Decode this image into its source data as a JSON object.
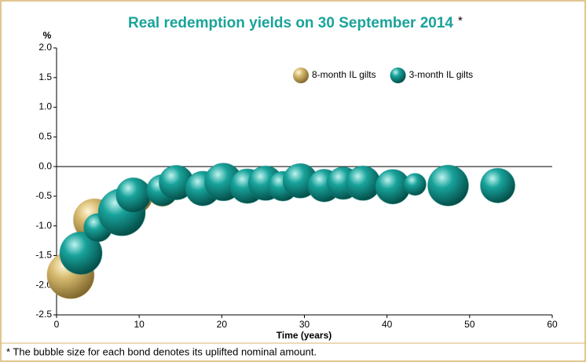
{
  "chart_data": {
    "type": "bubble",
    "title": "Real redemption yields on 30 September 2014",
    "title_mark": "*",
    "y_label": "%",
    "x_label": "Time (years)",
    "footnote": "* The bubble size for each bond denotes its uplifted nominal amount.",
    "xlim": [
      0,
      60
    ],
    "xticks": [
      0,
      10,
      20,
      30,
      40,
      50,
      60
    ],
    "ylim": [
      -2.5,
      2.0
    ],
    "yticks": [
      {
        "value": 2.0,
        "label": "2.0"
      },
      {
        "value": 1.5,
        "label": "1.5"
      },
      {
        "value": 1.0,
        "label": "1.0"
      },
      {
        "value": 0.5,
        "label": "0.5"
      },
      {
        "value": 0,
        "label": "0.0"
      },
      {
        "value": -0.5,
        "label": "-0.5"
      },
      {
        "value": -1.0,
        "label": "-1.0"
      },
      {
        "value": -1.5,
        "label": "-1.5"
      },
      {
        "value": -2.0,
        "label": "-2.0"
      },
      {
        "value": -2.5,
        "label": "-2.5"
      }
    ],
    "legend": "top-right",
    "series": [
      {
        "name": "8-month IL gilts",
        "color": "#c9a85a",
        "x": [
          1.7,
          4.6,
          9.5,
          12.8,
          17.7
        ],
        "values": [
          -1.83,
          -0.9,
          -0.5,
          -0.42,
          -0.38
        ],
        "sizes": [
          100,
          81,
          54,
          40,
          45
        ]
      },
      {
        "name": "3-month IL gilts",
        "color": "#0f8a84",
        "x": [
          2.95,
          5.0,
          7.9,
          9.3,
          12.8,
          14.5,
          17.7,
          20.2,
          23.1,
          25.3,
          27.4,
          29.5,
          32.4,
          34.7,
          37.1,
          40.7,
          43.4,
          47.4,
          53.4
        ],
        "values": [
          -1.46,
          -1.03,
          -0.77,
          -0.48,
          -0.4,
          -0.27,
          -0.37,
          -0.26,
          -0.33,
          -0.28,
          -0.33,
          -0.24,
          -0.32,
          -0.28,
          -0.28,
          -0.34,
          -0.3,
          -0.32,
          -0.32
        ],
        "sizes": [
          81,
          36,
          100,
          54,
          44,
          54,
          54,
          64,
          54,
          54,
          40,
          54,
          48,
          48,
          54,
          54,
          22,
          75,
          54
        ]
      }
    ]
  }
}
